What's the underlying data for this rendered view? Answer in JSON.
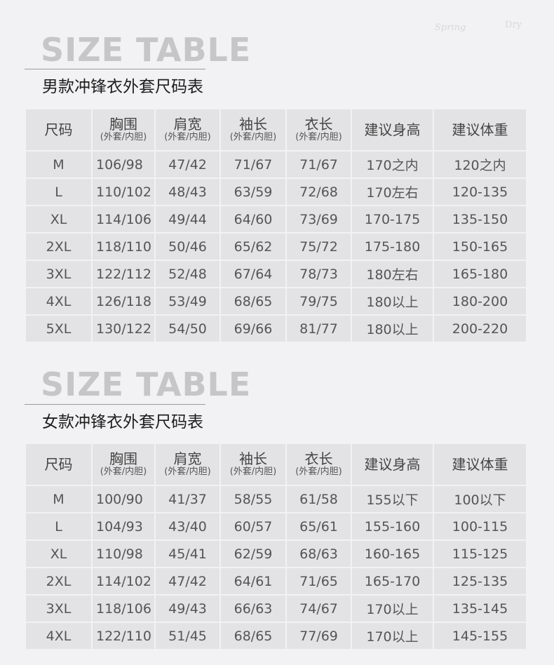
{
  "watermark": [
    "Spring",
    "Dry"
  ],
  "columns": [
    {
      "label": "尺码",
      "sub": ""
    },
    {
      "label": "胸围",
      "sub": "(外套/内胆)"
    },
    {
      "label": "肩宽",
      "sub": "(外套/内胆)"
    },
    {
      "label": "袖长",
      "sub": "(外套/内胆)"
    },
    {
      "label": "衣长",
      "sub": "(外套/内胆)"
    },
    {
      "label": "建议身高",
      "sub": ""
    },
    {
      "label": "建议体重",
      "sub": ""
    }
  ],
  "men": {
    "title": "SIZE TABLE",
    "subtitle": "男款冲锋衣外套尺码表",
    "rows": [
      [
        "M",
        "106/98",
        "47/42",
        "71/67",
        "71/67",
        "170之内",
        "120之内"
      ],
      [
        "L",
        "110/102",
        "48/43",
        "63/59",
        "72/68",
        "170左右",
        "120-135"
      ],
      [
        "XL",
        "114/106",
        "49/44",
        "64/60",
        "73/69",
        "170-175",
        "135-150"
      ],
      [
        "2XL",
        "118/110",
        "50/46",
        "65/62",
        "75/72",
        "175-180",
        "150-165"
      ],
      [
        "3XL",
        "122/112",
        "52/48",
        "67/64",
        "78/73",
        "180左右",
        "165-180"
      ],
      [
        "4XL",
        "126/118",
        "53/49",
        "68/65",
        "79/75",
        "180以上",
        "180-200"
      ],
      [
        "5XL",
        "130/122",
        "54/50",
        "69/66",
        "81/77",
        "180以上",
        "200-220"
      ]
    ]
  },
  "women": {
    "title": "SIZE TABLE",
    "subtitle": "女款冲锋衣外套尺码表",
    "rows": [
      [
        "M",
        "100/90",
        "41/37",
        "58/55",
        "61/58",
        "155以下",
        "100以下"
      ],
      [
        "L",
        "104/93",
        "43/40",
        "60/57",
        "65/61",
        "155-160",
        "100-115"
      ],
      [
        "XL",
        "110/98",
        "45/41",
        "62/59",
        "68/63",
        "160-165",
        "115-125"
      ],
      [
        "2XL",
        "114/102",
        "47/42",
        "64/61",
        "71/65",
        "165-170",
        "125-135"
      ],
      [
        "3XL",
        "118/106",
        "49/43",
        "66/63",
        "74/67",
        "170以上",
        "135-145"
      ],
      [
        "4XL",
        "122/110",
        "51/45",
        "68/65",
        "77/69",
        "170以上",
        "145-155"
      ]
    ]
  }
}
